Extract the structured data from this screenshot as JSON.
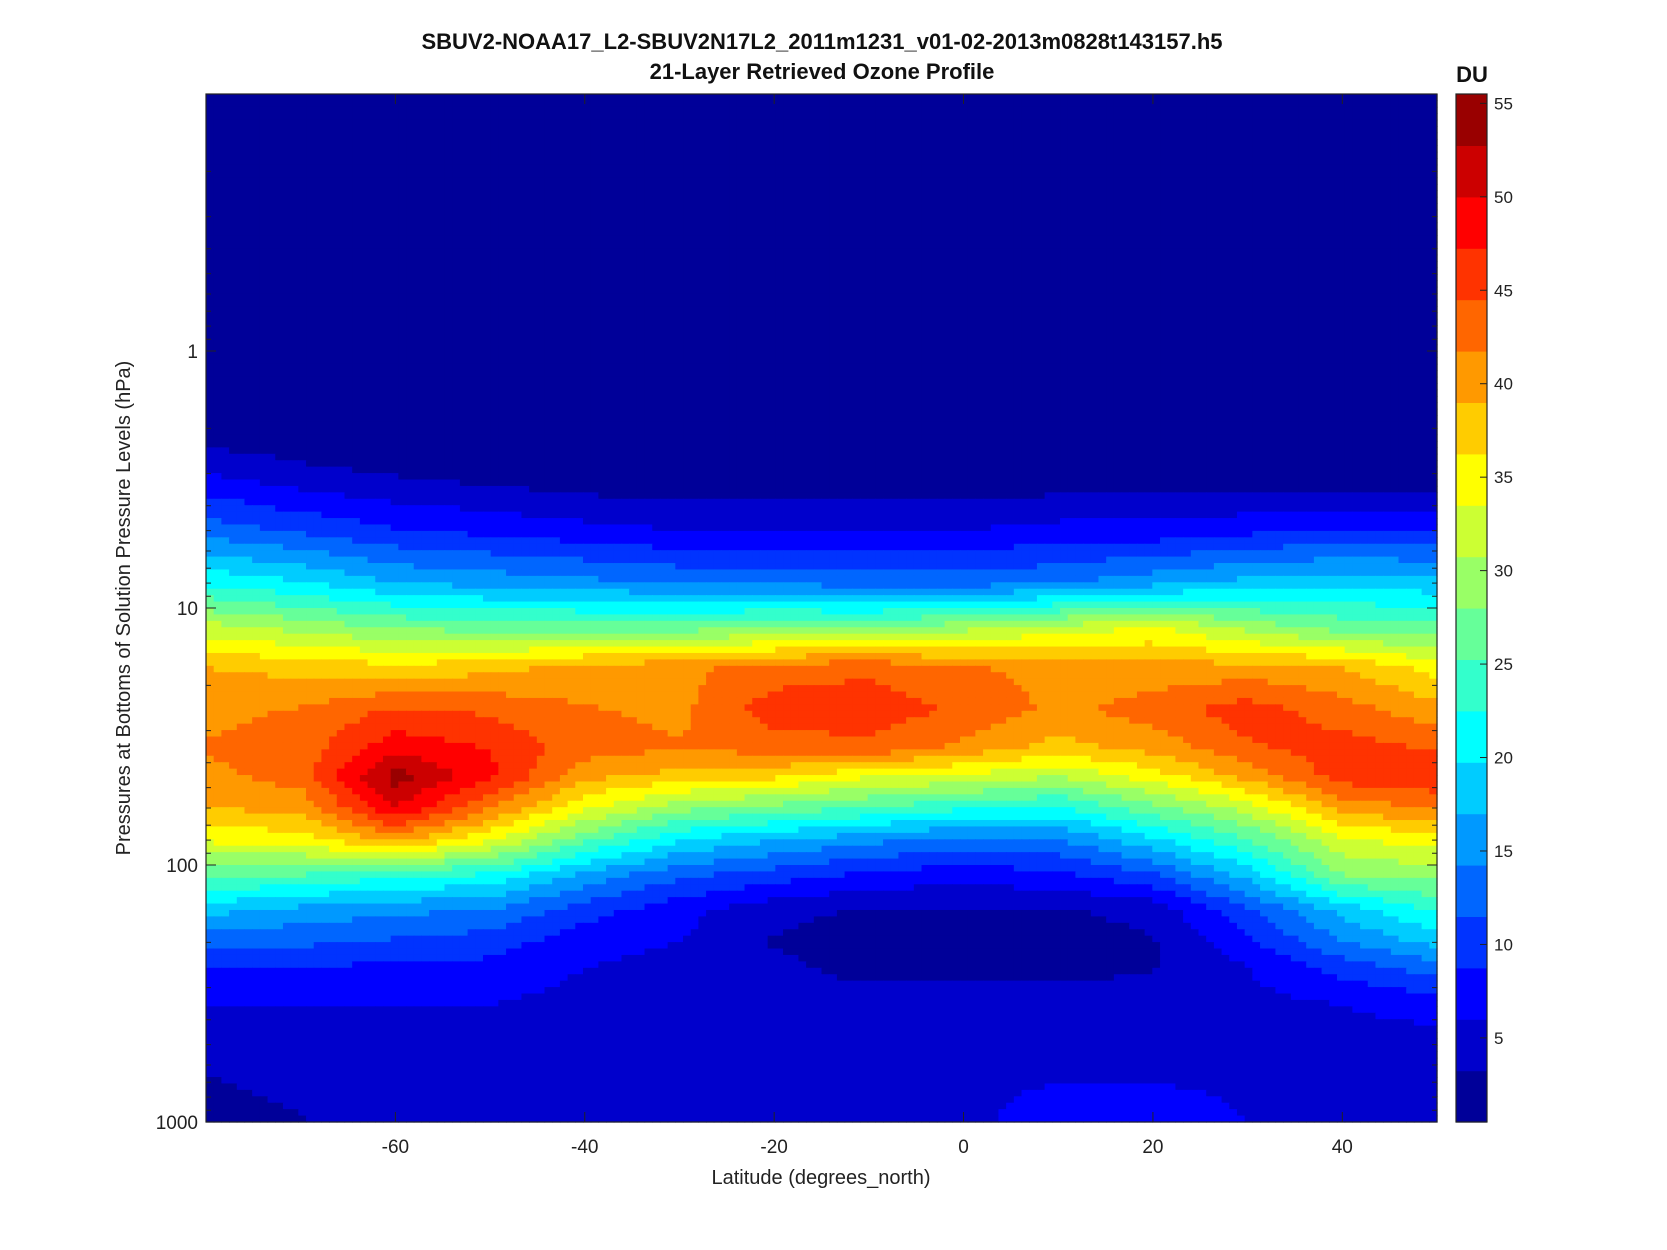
{
  "chart_data": {
    "type": "heatmap",
    "title": "SBUV2-NOAA17_L2-SBUV2N17L2_2011m1231_v01-02-2013m0828t143157.h5",
    "subtitle": "21-Layer Retrieved Ozone Profile",
    "xlabel": "Latitude (degrees_north)",
    "ylabel": "Pressures at Bottoms of Solution Pressure Levels (hPa)",
    "xlim": [
      -80,
      50
    ],
    "ylim": [
      1000,
      0.1
    ],
    "y_scale": "log",
    "y_reversed": true,
    "x_ticks": [
      -60,
      -40,
      -20,
      0,
      20,
      40
    ],
    "y_ticks": [
      1,
      10,
      100,
      1000
    ],
    "colorbar": {
      "label": "DU",
      "range": [
        0.5,
        55.5
      ],
      "ticks": [
        5,
        10,
        15,
        20,
        25,
        30,
        35,
        40,
        45,
        50,
        55
      ],
      "colormap": "jet",
      "levels": 20
    },
    "latitudes": [
      -80,
      -70,
      -60,
      -50,
      -40,
      -30,
      -20,
      -10,
      0,
      10,
      20,
      30,
      40,
      50
    ],
    "pressures": [
      0.3,
      1,
      2,
      3,
      5,
      8,
      12,
      17,
      25,
      35,
      45,
      60,
      80,
      110,
      150,
      200,
      250,
      350,
      500,
      700,
      1000
    ],
    "values": [
      [
        1,
        1,
        1,
        1,
        1,
        1,
        1,
        1,
        1,
        1,
        1,
        1,
        1,
        1
      ],
      [
        1,
        1,
        1,
        1,
        1,
        1,
        1,
        1,
        1,
        1,
        1,
        1,
        1,
        1
      ],
      [
        1,
        1,
        1,
        1,
        1,
        1,
        1,
        1,
        1,
        1,
        1,
        1,
        1,
        1
      ],
      [
        6,
        4,
        3,
        2,
        1,
        1,
        1,
        1,
        1,
        1,
        1,
        1,
        1,
        1
      ],
      [
        13,
        11,
        9,
        8,
        7,
        6,
        6,
        6,
        6,
        7,
        7,
        8,
        9,
        9
      ],
      [
        22,
        20,
        17,
        16,
        15,
        14,
        14,
        13,
        13,
        14,
        16,
        18,
        19,
        18
      ],
      [
        32,
        30,
        28,
        27,
        27,
        27,
        28,
        28,
        30,
        32,
        34,
        30,
        27,
        26
      ],
      [
        39,
        38,
        37,
        38,
        40,
        41,
        43,
        44,
        42,
        41,
        40,
        40,
        39,
        35
      ],
      [
        41,
        42,
        45,
        44,
        42,
        41,
        46,
        46,
        44,
        41,
        43,
        46,
        43,
        40
      ],
      [
        42,
        43,
        49,
        47,
        43,
        42,
        43,
        44,
        41,
        38,
        40,
        44,
        46,
        44
      ],
      [
        41,
        43,
        54,
        48,
        40,
        38,
        37,
        34,
        33,
        31,
        35,
        40,
        46,
        47
      ],
      [
        39,
        40,
        50,
        42,
        34,
        29,
        27,
        25,
        23,
        22,
        27,
        32,
        40,
        42
      ],
      [
        34,
        35,
        40,
        34,
        26,
        20,
        17,
        15,
        13,
        14,
        19,
        25,
        33,
        35
      ],
      [
        26,
        25,
        23,
        22,
        16,
        12,
        10,
        8,
        7,
        8,
        11,
        18,
        28,
        29
      ],
      [
        18,
        16,
        15,
        14,
        10,
        7,
        4,
        3,
        3,
        3,
        4,
        11,
        18,
        23
      ],
      [
        12,
        12,
        11,
        10,
        7,
        6,
        3,
        2,
        2,
        2,
        3,
        8,
        14,
        18
      ],
      [
        9,
        9,
        8,
        8,
        6,
        5,
        4,
        2,
        2,
        2,
        3,
        6,
        10,
        13
      ],
      [
        6,
        6,
        6,
        6,
        5,
        5,
        5,
        5,
        5,
        5,
        5,
        5,
        6,
        7
      ],
      [
        4,
        5,
        5,
        5,
        5,
        5,
        5,
        5,
        5,
        5,
        5,
        5,
        5,
        5
      ],
      [
        3,
        4,
        5,
        5,
        5,
        5,
        5,
        5,
        5,
        6,
        6,
        5,
        5,
        5
      ],
      [
        2,
        3,
        5,
        5,
        5,
        5,
        5,
        5,
        5,
        8,
        9,
        6,
        5,
        5
      ]
    ]
  }
}
